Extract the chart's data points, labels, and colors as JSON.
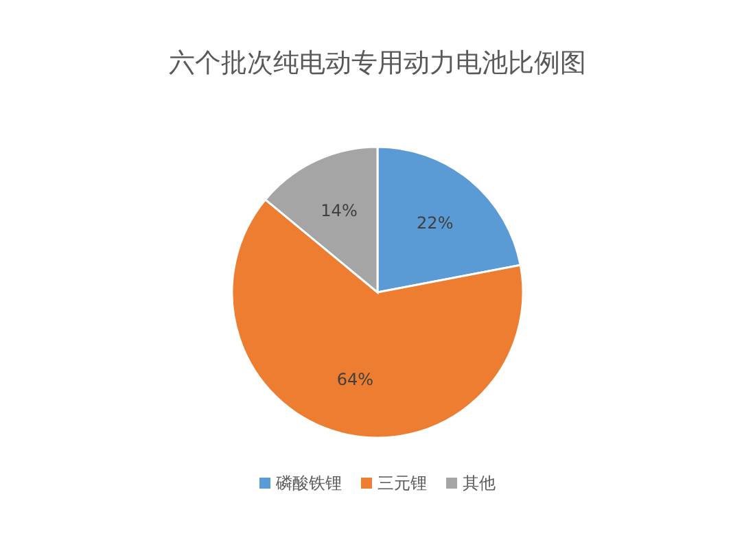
{
  "chart_data": {
    "type": "pie",
    "title": "六个批次纯电动专用动力电池比例图",
    "categories": [
      "磷酸铁锂",
      "三元锂",
      "其他"
    ],
    "values": [
      22,
      64,
      14
    ],
    "colors": [
      "#5b9bd5",
      "#ed7d31",
      "#a5a5a5"
    ],
    "value_labels": [
      "22%",
      "64%",
      "14%"
    ],
    "legend": "bottom"
  }
}
